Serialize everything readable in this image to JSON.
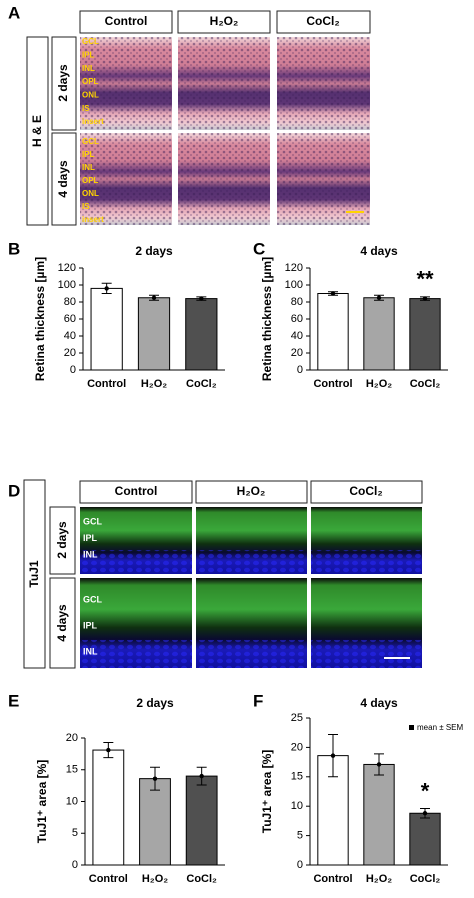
{
  "panel_a": {
    "label": "A",
    "columns": [
      "Control",
      "H₂O₂",
      "CoCl₂"
    ],
    "group": "H & E",
    "rows": [
      "2 days",
      "4 days"
    ],
    "layers": [
      [
        "GCL",
        "IPL",
        "INL",
        "OPL",
        "ONL",
        "IS",
        "insert"
      ],
      [
        "GCL",
        "IPL",
        "INL",
        "OPL",
        "ONL",
        "IS",
        "insert"
      ]
    ]
  },
  "panel_d": {
    "label": "D",
    "columns": [
      "Control",
      "H₂O₂",
      "CoCl₂"
    ],
    "group": "TuJ1",
    "rows": [
      "2 days",
      "4 days"
    ],
    "layers": [
      [
        "GCL",
        "IPL",
        "INL"
      ],
      [
        "GCL",
        "IPL",
        "INL"
      ]
    ]
  },
  "chart_data": [
    {
      "type": "bar",
      "label": "B",
      "title": "2 days",
      "ylabel": "Retina thickness [µm]",
      "categories": [
        "Control",
        "H₂O₂",
        "CoCl₂"
      ],
      "values": [
        96,
        85,
        84
      ],
      "errors": [
        6,
        3,
        2
      ],
      "colors": [
        "#ffffff",
        "#a6a6a6",
        "#505050"
      ],
      "ylim": [
        0,
        120
      ],
      "yticks": [
        0,
        20,
        40,
        60,
        80,
        100,
        120
      ]
    },
    {
      "type": "bar",
      "label": "C",
      "title": "4 days",
      "ylabel": "Retina thickness [µm]",
      "categories": [
        "Control",
        "H₂O₂",
        "CoCl₂"
      ],
      "values": [
        90,
        85,
        84
      ],
      "errors": [
        2,
        3,
        2
      ],
      "colors": [
        "#ffffff",
        "#a6a6a6",
        "#505050"
      ],
      "ylim": [
        0,
        120
      ],
      "yticks": [
        0,
        20,
        40,
        60,
        80,
        100,
        120
      ],
      "annotation": "**"
    },
    {
      "type": "bar",
      "label": "E",
      "title": "2 days",
      "ylabel": "TuJ1⁺ area [%]",
      "categories": [
        "Control",
        "H₂O₂",
        "CoCl₂"
      ],
      "values": [
        18.1,
        13.6,
        14.0
      ],
      "errors": [
        1.2,
        1.8,
        1.4
      ],
      "colors": [
        "#ffffff",
        "#a6a6a6",
        "#505050"
      ],
      "ylim": [
        0,
        20
      ],
      "yticks": [
        0,
        5,
        10,
        15,
        20
      ]
    },
    {
      "type": "bar",
      "label": "F",
      "title": "4 days",
      "ylabel": "TuJ1⁺ area [%]",
      "categories": [
        "Control",
        "H₂O₂",
        "CoCl₂"
      ],
      "values": [
        18.6,
        17.1,
        8.8
      ],
      "errors": [
        3.6,
        1.8,
        0.8
      ],
      "colors": [
        "#ffffff",
        "#a6a6a6",
        "#505050"
      ],
      "ylim": [
        0,
        25
      ],
      "yticks": [
        0,
        5,
        10,
        15,
        20,
        25
      ],
      "annotation": "*",
      "legend": "mean ± SEM"
    }
  ]
}
